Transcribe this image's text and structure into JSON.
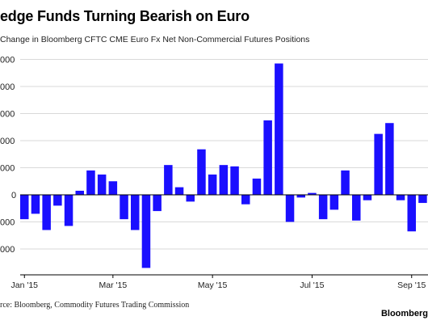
{
  "title": "edge Funds Turning Bearish on Euro",
  "subtitle": "Change in Bloomberg CFTC CME Euro Fx Net Non-Commercial Futures Positions",
  "source": "rce: Bloomberg, Commodity Futures Trading Commission",
  "brand": "Bloomberg",
  "colors": {
    "bar": "#1a0fff",
    "grid": "#d9d9d9",
    "zero_line": "#000000",
    "text": "#222222"
  },
  "chart_data": {
    "type": "bar",
    "title": "edge Funds Turning Bearish on Euro",
    "xlabel": "",
    "ylabel": "",
    "grid": true,
    "ylim": [
      -26000,
      52000
    ],
    "y_ticks": [
      {
        "value": 50000,
        "label": "000"
      },
      {
        "value": 40000,
        "label": "000"
      },
      {
        "value": 30000,
        "label": "000"
      },
      {
        "value": 20000,
        "label": "000"
      },
      {
        "value": 10000,
        "label": "000"
      },
      {
        "value": 0,
        "label": "0"
      },
      {
        "value": -10000,
        "label": "000"
      },
      {
        "value": -20000,
        "label": "000"
      }
    ],
    "x_ticks": [
      {
        "index": 0,
        "label": "Jan '15"
      },
      {
        "index": 8,
        "label": "Mar '15"
      },
      {
        "index": 17,
        "label": "May '15"
      },
      {
        "index": 26,
        "label": "Jul '15"
      },
      {
        "index": 35,
        "label": "Sep '15"
      }
    ],
    "values": [
      -9000,
      -7000,
      -13000,
      -4000,
      -11500,
      1500,
      9000,
      7500,
      5000,
      -9000,
      -13000,
      -27000,
      -6000,
      11000,
      2800,
      -2500,
      16800,
      7500,
      11000,
      10500,
      -3500,
      6000,
      27500,
      48500,
      -10000,
      -1000,
      700,
      -9000,
      -5500,
      9000,
      -9500,
      -2000,
      22500,
      26500,
      -2000,
      -13500,
      -3000
    ]
  }
}
